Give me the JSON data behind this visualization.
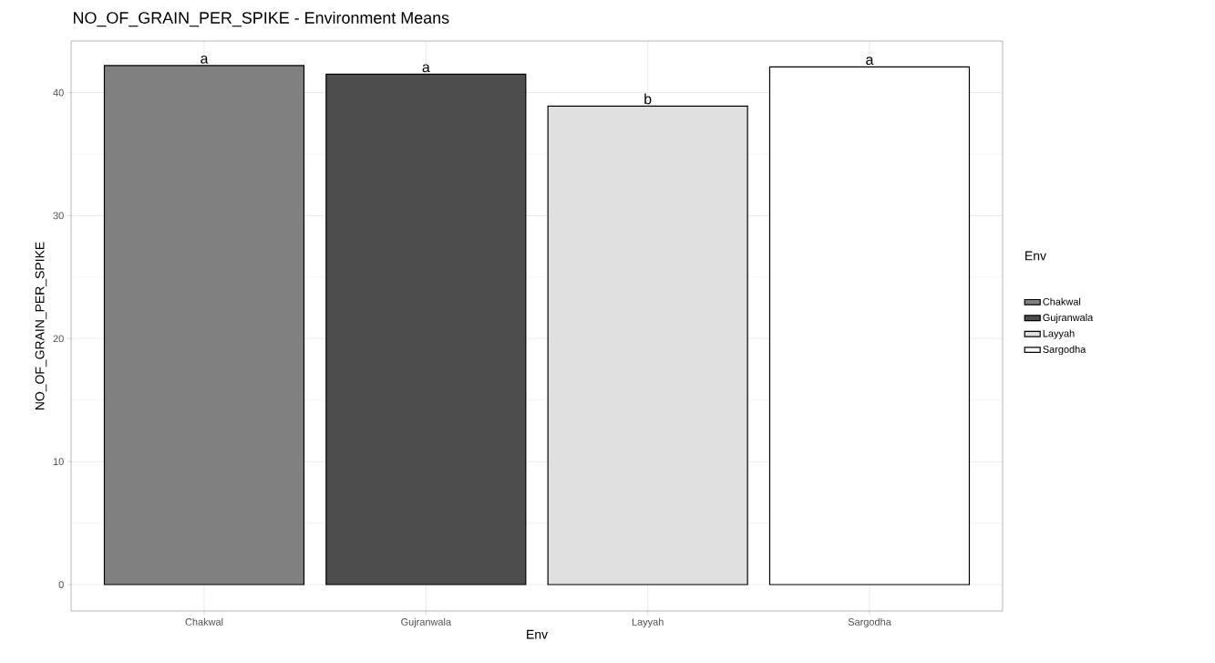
{
  "chart_data": {
    "type": "bar",
    "title": "NO_OF_GRAIN_PER_SPIKE - Environment Means",
    "xlabel": "Env",
    "ylabel": "NO_OF_GRAIN_PER_SPIKE",
    "legend_title": "Env",
    "categories": [
      "Chakwal",
      "Gujranwala",
      "Layyah",
      "Sargodha"
    ],
    "series": [
      {
        "name": "Chakwal",
        "color": "#808080",
        "values": [
          42.2,
          null,
          null,
          null
        ]
      },
      {
        "name": "Gujranwala",
        "color": "#4d4d4d",
        "values": [
          null,
          41.5,
          null,
          null
        ]
      },
      {
        "name": "Layyah",
        "color": "#e0e0e0",
        "values": [
          null,
          null,
          38.9,
          null
        ]
      },
      {
        "name": "Sargodha",
        "color": "#ffffff",
        "values": [
          null,
          null,
          null,
          42.1
        ]
      }
    ],
    "ylim": [
      -2.15,
      44.2
    ],
    "yticks": [
      0,
      10,
      20,
      30,
      40
    ],
    "grid": true,
    "legend": "right",
    "annotations": [
      {
        "text": "a",
        "x": "Chakwal",
        "y": 42.2
      },
      {
        "text": "a",
        "x": "Gujranwala",
        "y": 41.5
      },
      {
        "text": "b",
        "x": "Layyah",
        "y": 38.9
      },
      {
        "text": "a",
        "x": "Sargodha",
        "y": 42.1
      }
    ]
  }
}
